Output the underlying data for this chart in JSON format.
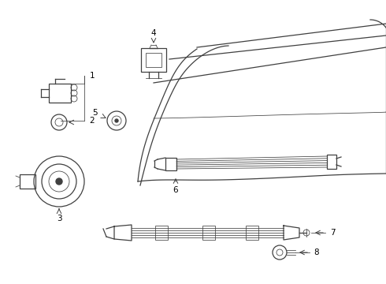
{
  "bg_color": "#ffffff",
  "line_color": "#404040",
  "fig_width": 4.9,
  "fig_height": 3.6,
  "dpi": 100
}
